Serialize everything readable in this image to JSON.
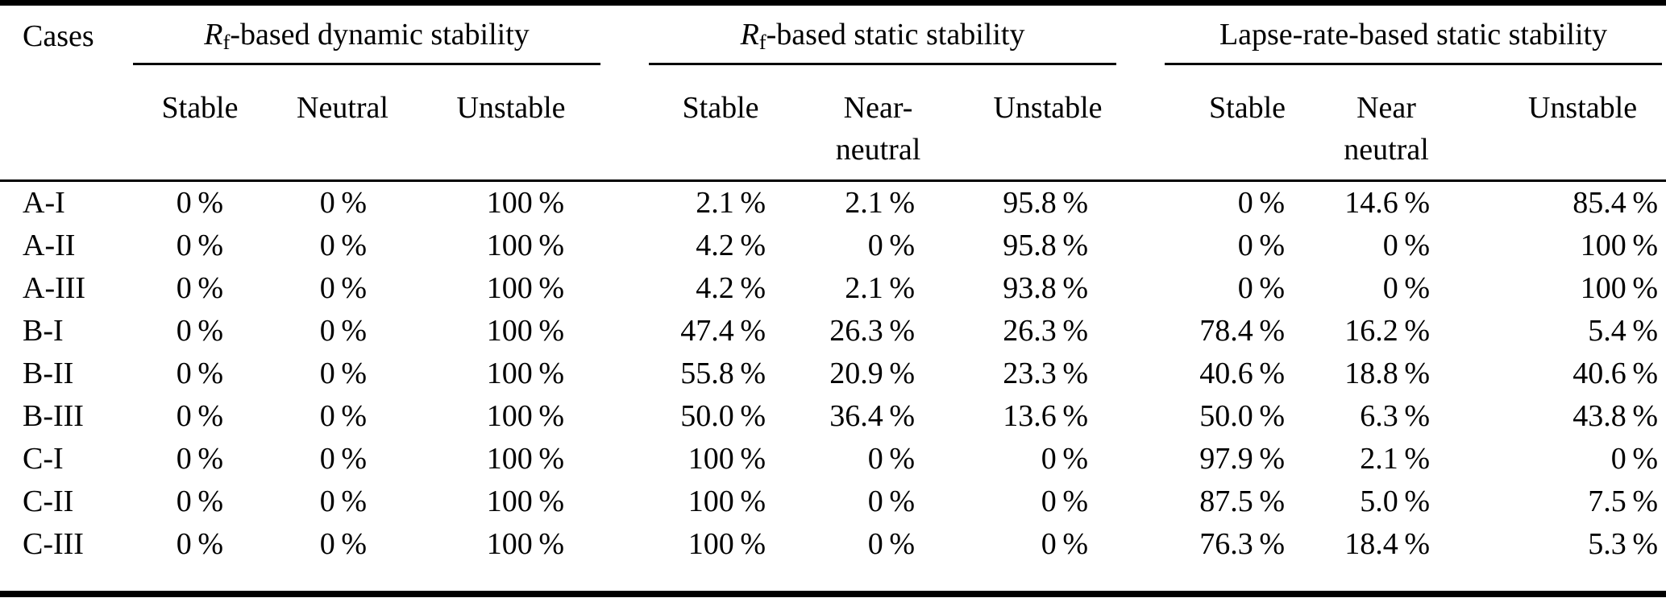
{
  "page": {
    "background": "#ffffff",
    "text_color": "#000000",
    "rule_color": "#000000"
  },
  "table": {
    "corner_header": "Cases",
    "groups": [
      {
        "title_italic": "R",
        "title_sub": "f",
        "title_rest": "-based dynamic stability",
        "sub_columns": [
          {
            "line1": "Stable",
            "line2": ""
          },
          {
            "line1": "Neutral",
            "line2": ""
          },
          {
            "line1": "Unstable",
            "line2": ""
          }
        ]
      },
      {
        "title_italic": "R",
        "title_sub": "f",
        "title_rest": "-based static stability",
        "sub_columns": [
          {
            "line1": "Stable",
            "line2": ""
          },
          {
            "line1": "Near-",
            "line2": "neutral"
          },
          {
            "line1": "Unstable",
            "line2": ""
          }
        ]
      },
      {
        "title_italic": "",
        "title_sub": "",
        "title_rest": "Lapse-rate-based static stability",
        "sub_columns": [
          {
            "line1": "Stable",
            "line2": ""
          },
          {
            "line1": "Near",
            "line2": "neutral"
          },
          {
            "line1": "Unstable",
            "line2": ""
          }
        ]
      }
    ],
    "rows": [
      {
        "case": "A-I",
        "values": [
          "0 %",
          "0 %",
          "100 %",
          "2.1 %",
          "2.1 %",
          "95.8 %",
          "0 %",
          "14.6 %",
          "85.4 %"
        ]
      },
      {
        "case": "A-II",
        "values": [
          "0 %",
          "0 %",
          "100 %",
          "4.2 %",
          "0 %",
          "95.8 %",
          "0 %",
          "0 %",
          "100 %"
        ]
      },
      {
        "case": "A-III",
        "values": [
          "0 %",
          "0 %",
          "100 %",
          "4.2 %",
          "2.1 %",
          "93.8 %",
          "0 %",
          "0 %",
          "100 %"
        ]
      },
      {
        "case": "B-I",
        "values": [
          "0 %",
          "0 %",
          "100 %",
          "47.4 %",
          "26.3 %",
          "26.3 %",
          "78.4 %",
          "16.2 %",
          "5.4 %"
        ]
      },
      {
        "case": "B-II",
        "values": [
          "0 %",
          "0 %",
          "100 %",
          "55.8 %",
          "20.9 %",
          "23.3 %",
          "40.6 %",
          "18.8 %",
          "40.6 %"
        ]
      },
      {
        "case": "B-III",
        "values": [
          "0 %",
          "0 %",
          "100 %",
          "50.0 %",
          "36.4 %",
          "13.6 %",
          "50.0 %",
          "6.3 %",
          "43.8 %"
        ]
      },
      {
        "case": "C-I",
        "values": [
          "0 %",
          "0 %",
          "100 %",
          "100 %",
          "0 %",
          "0 %",
          "97.9 %",
          "2.1 %",
          "0 %"
        ]
      },
      {
        "case": "C-II",
        "values": [
          "0 %",
          "0 %",
          "100 %",
          "100 %",
          "0 %",
          "0 %",
          "87.5 %",
          "5.0 %",
          "7.5 %"
        ]
      },
      {
        "case": "C-III",
        "values": [
          "0 %",
          "0 %",
          "100 %",
          "100 %",
          "0 %",
          "0 %",
          "76.3 %",
          "18.4 %",
          "5.3 %"
        ]
      }
    ]
  }
}
